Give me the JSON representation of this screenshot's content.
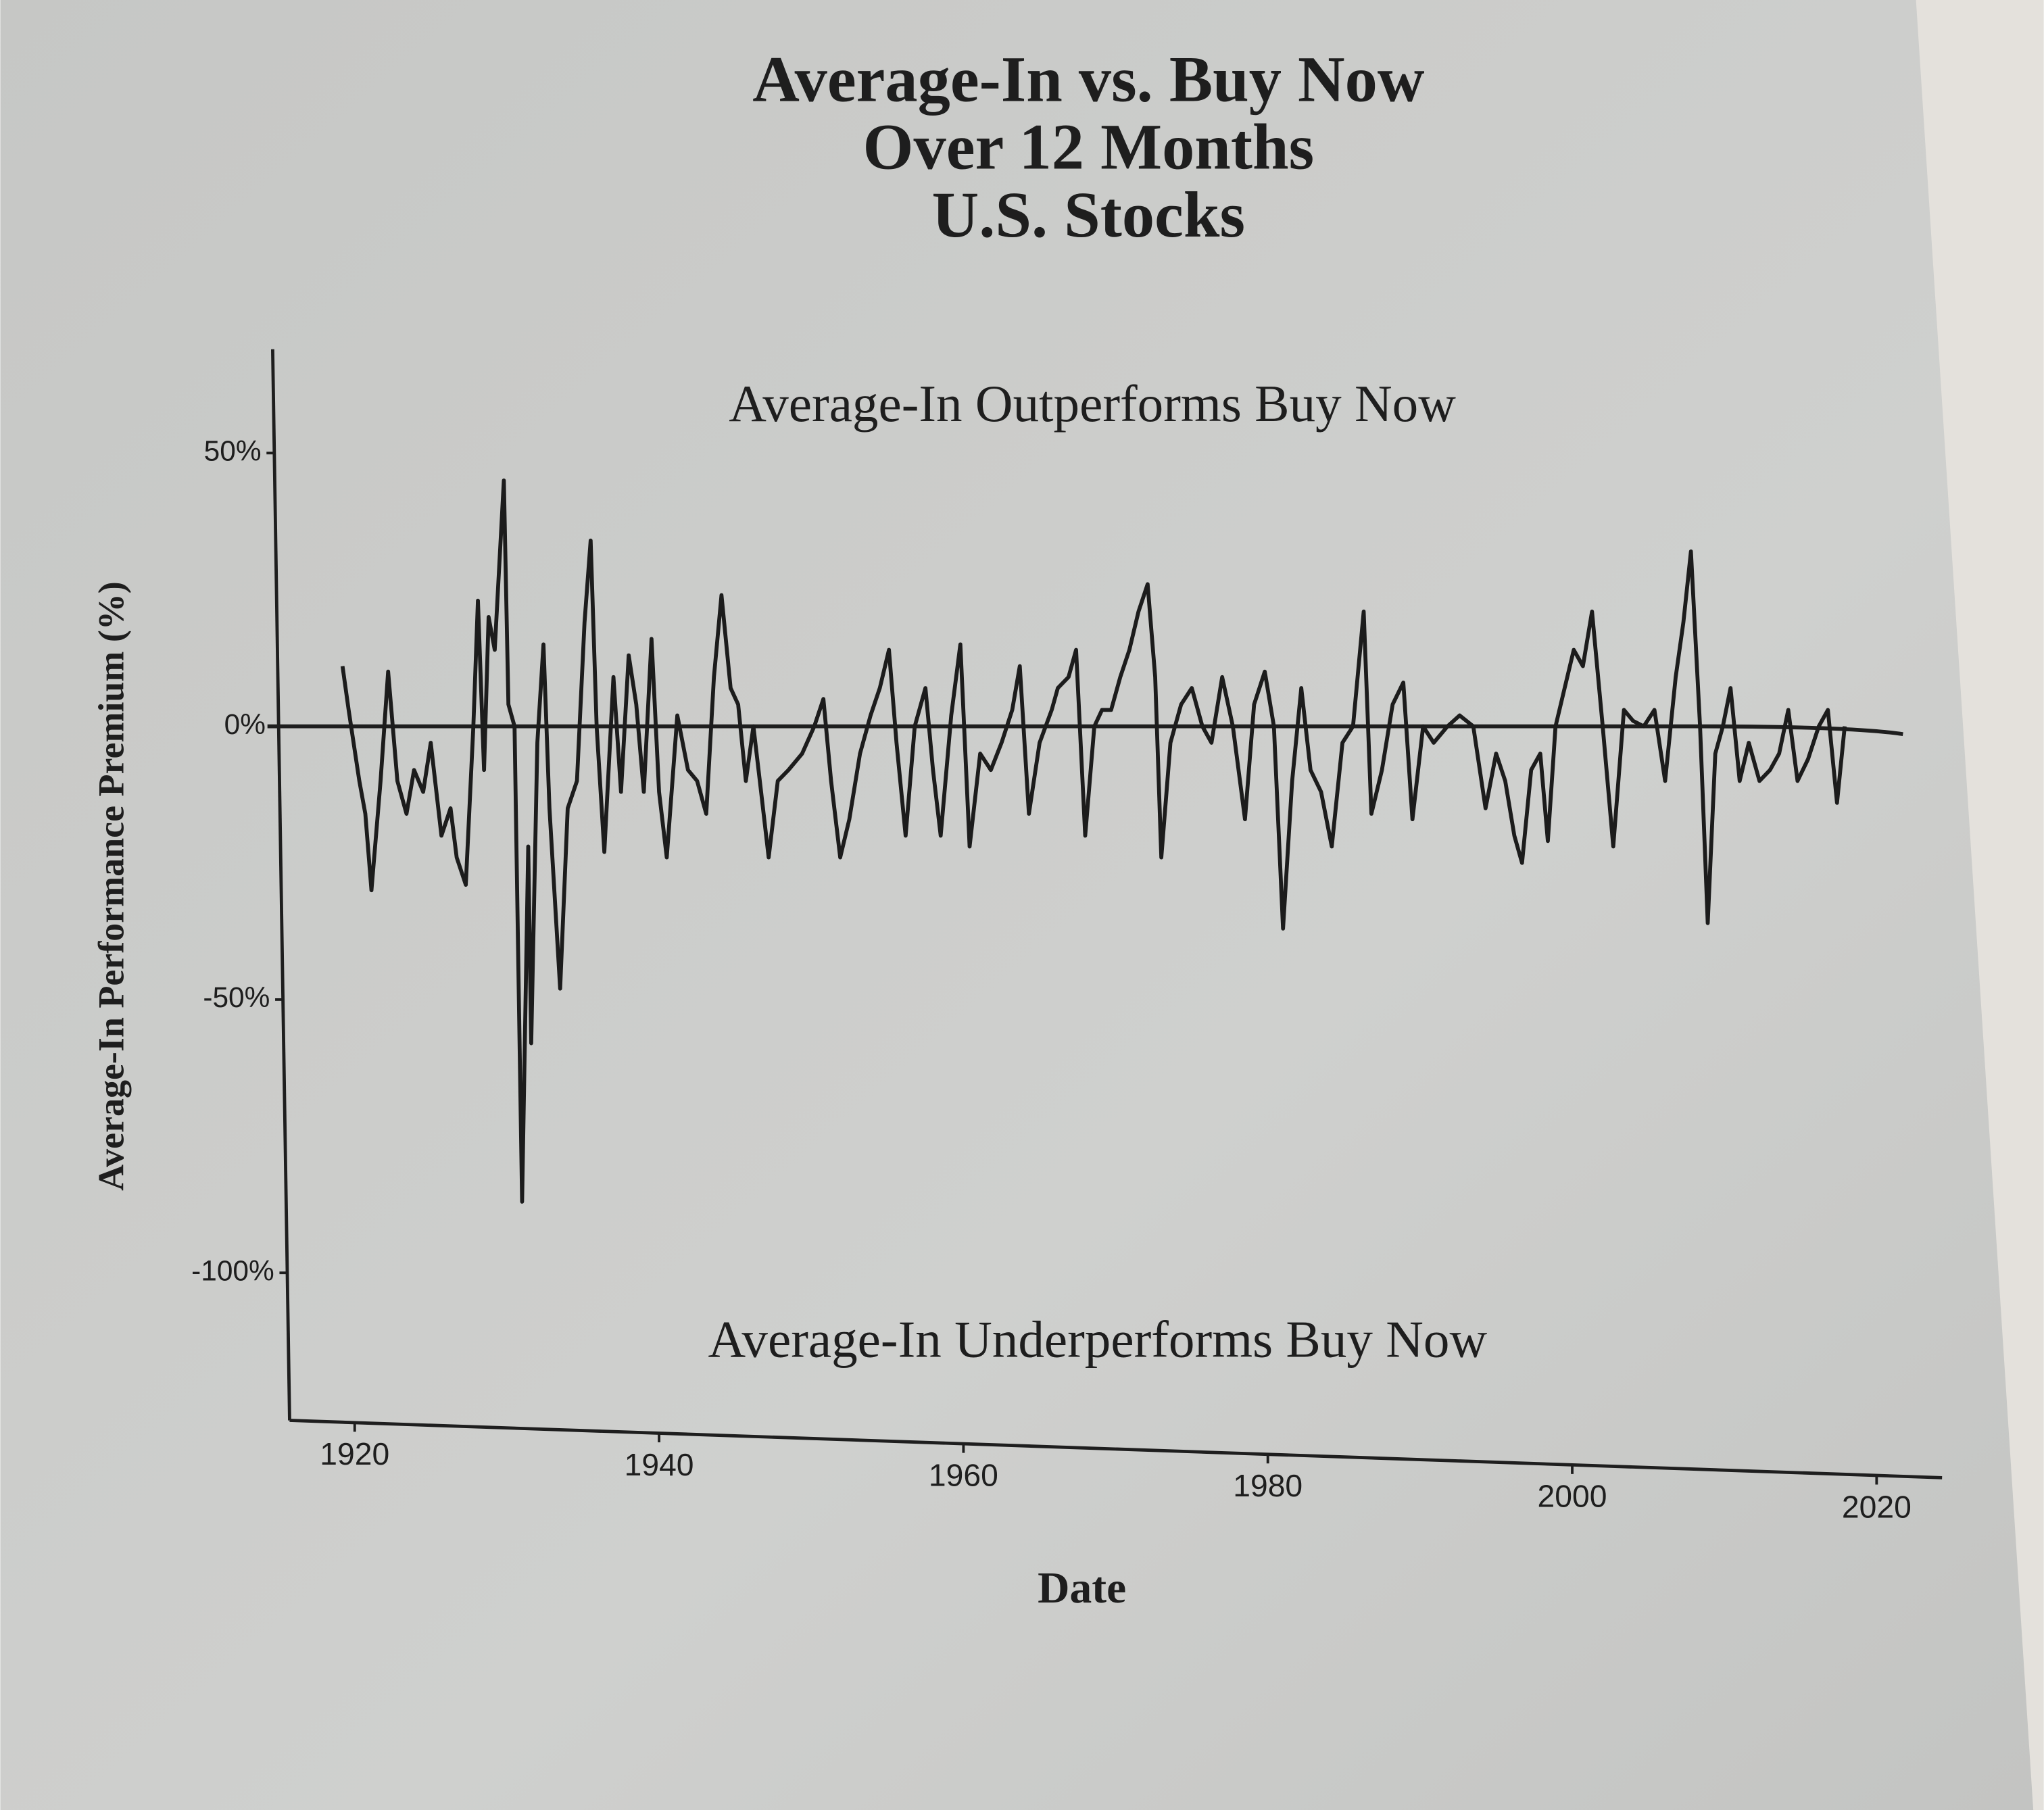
{
  "chart_data": {
    "type": "line",
    "title": [
      "Average-In vs. Buy Now",
      "Over 12 Months",
      "U.S. Stocks"
    ],
    "annotations": [
      "Average-In Outperforms Buy Now",
      "Average-In Underperforms Buy Now"
    ],
    "xlabel": "Date",
    "ylabel": "Average-In Performance Premium (%)",
    "color": "#1c1c1c",
    "x": [
      1919.2,
      1919.6,
      1920.3,
      1920.7,
      1921.1,
      1921.7,
      1922.2,
      1922.8,
      1923.4,
      1923.9,
      1924.5,
      1925.0,
      1925.7,
      1926.3,
      1926.7,
      1927.3,
      1927.8,
      1928.1,
      1928.5,
      1928.8,
      1929.2,
      1929.8,
      1930.1,
      1930.5,
      1931.0,
      1931.4,
      1931.6,
      1932.0,
      1932.4,
      1932.8,
      1933.5,
      1934.0,
      1934.6,
      1935.1,
      1935.5,
      1935.9,
      1936.4,
      1937.0,
      1937.5,
      1938.0,
      1938.5,
      1939.0,
      1939.5,
      1940.0,
      1940.5,
      1941.2,
      1941.9,
      1942.5,
      1943.1,
      1943.6,
      1944.1,
      1944.7,
      1945.2,
      1945.7,
      1946.2,
      1946.7,
      1947.2,
      1947.8,
      1948.5,
      1949.4,
      1950.2,
      1950.8,
      1951.3,
      1951.9,
      1952.5,
      1953.2,
      1953.9,
      1954.5,
      1955.1,
      1955.6,
      1956.2,
      1956.8,
      1957.5,
      1958.0,
      1958.5,
      1959.2,
      1959.8,
      1960.4,
      1961.1,
      1961.8,
      1962.5,
      1963.2,
      1963.7,
      1964.3,
      1965.0,
      1965.8,
      1966.2,
      1966.9,
      1967.4,
      1968.0,
      1968.6,
      1969.1,
      1969.7,
      1970.3,
      1970.9,
      1971.5,
      1972.1,
      1972.6,
      1973.0,
      1973.6,
      1974.3,
      1975.0,
      1975.7,
      1976.3,
      1977.0,
      1977.7,
      1978.5,
      1979.1,
      1979.8,
      1980.4,
      1981.0,
      1981.6,
      1982.2,
      1982.8,
      1983.5,
      1984.2,
      1984.9,
      1985.6,
      1986.3,
      1986.8,
      1987.5,
      1988.2,
      1988.9,
      1989.5,
      1990.2,
      1990.9,
      1991.8,
      1992.6,
      1993.5,
      1994.3,
      1995.0,
      1995.6,
      1996.2,
      1996.7,
      1997.3,
      1997.9,
      1998.4,
      1998.9,
      1999.5,
      2000.1,
      2000.7,
      2001.3,
      2002.0,
      2002.7,
      2003.4,
      2004.0,
      2004.7,
      2005.4,
      2006.1,
      2006.8,
      2007.3,
      2007.8,
      2008.4,
      2008.9,
      2009.4,
      2009.9,
      2010.4,
      2011.0,
      2011.6,
      2012.3,
      2013.0,
      2013.6,
      2014.2,
      2014.8,
      2015.5,
      2016.2,
      2016.8,
      2017.4,
      2017.9
    ],
    "values": [
      11,
      3,
      -10,
      -16,
      -30,
      -10,
      10,
      -10,
      -16,
      -8,
      -12,
      -3,
      -20,
      -15,
      -24,
      -29,
      0,
      23,
      -8,
      20,
      14,
      45,
      4,
      0,
      -87,
      -22,
      -58,
      -3,
      15,
      -15,
      -48,
      -15,
      -10,
      19,
      34,
      0,
      -23,
      9,
      -12,
      13,
      4,
      -12,
      16,
      -12,
      -24,
      2,
      -8,
      -10,
      -16,
      9,
      24,
      7,
      4,
      -10,
      0,
      -12,
      -24,
      -10,
      -8,
      -5,
      0,
      5,
      -10,
      -24,
      -17,
      -5,
      2,
      7,
      14,
      -3,
      -20,
      0,
      7,
      -8,
      -20,
      2,
      15,
      -22,
      -5,
      -8,
      -3,
      3,
      11,
      -16,
      -3,
      3,
      7,
      9,
      14,
      -20,
      0,
      3,
      3,
      9,
      14,
      21,
      26,
      9,
      -24,
      -3,
      4,
      7,
      0,
      -3,
      9,
      0,
      -17,
      4,
      10,
      0,
      -37,
      -10,
      7,
      -8,
      -12,
      -22,
      -3,
      0,
      21,
      -16,
      -8,
      4,
      8,
      -17,
      0,
      -3,
      0,
      2,
      0,
      -15,
      -5,
      -10,
      -20,
      -25,
      -8,
      -5,
      -21,
      0,
      7,
      14,
      11,
      21,
      0,
      -22,
      3,
      1,
      0,
      3,
      -10,
      9,
      19,
      32,
      0,
      -36,
      -5,
      0,
      7,
      -10,
      -3,
      -10,
      -8,
      -5,
      3,
      -10,
      -6,
      0,
      3,
      -14,
      0
    ],
    "xlim": [
      1915.5,
      2024.3
    ],
    "ylim": [
      -127,
      69
    ],
    "xticks": [
      1920,
      1940,
      1960,
      1980,
      2000,
      2020
    ],
    "yticks": [
      {
        "value": 50,
        "label": "50%"
      },
      {
        "value": 0,
        "label": "0%"
      },
      {
        "value": -50,
        "label": "-50%"
      },
      {
        "value": -100,
        "label": "-100%"
      }
    ]
  }
}
